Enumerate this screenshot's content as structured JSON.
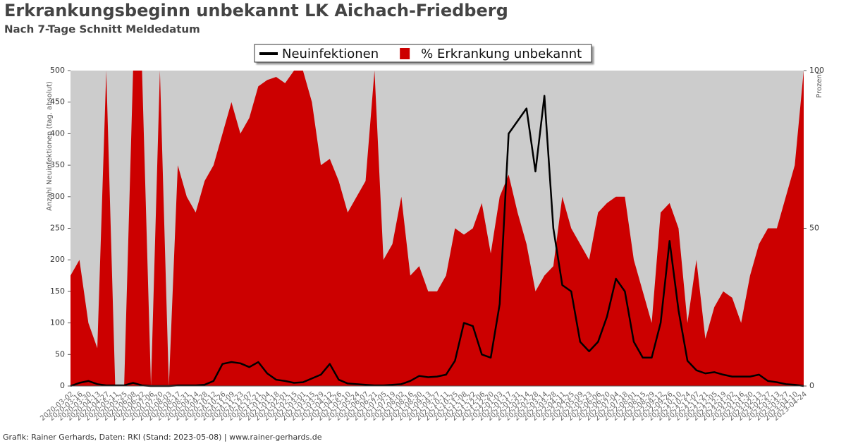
{
  "chart_data": {
    "type": "line",
    "title": "Erkrankungsbeginn unbekannt LK Aichach-Friedberg",
    "subtitle": "Nach 7-Tage Schnitt Meldedatum",
    "footer": "Grafik: Rainer Gerhards, Daten: RKI (Stand: 2023-05-08) | www.rainer-gerhards.de",
    "ylabel": "Anzahl Neuinfektionen (tag. absolut)",
    "y2label": "Prozent",
    "plot_background": "#cccccc",
    "categories": [
      "2020-03-02",
      "2020-03-16",
      "2020-03-30",
      "2020-04-13",
      "2020-04-27",
      "2020-05-11",
      "2020-05-25",
      "2020-06-08",
      "2020-06-22",
      "2020-07-06",
      "2020-07-20",
      "2020-08-03",
      "2020-08-17",
      "2020-08-31",
      "2020-09-14",
      "2020-09-28",
      "2020-10-12",
      "2020-10-26",
      "2020-11-09",
      "2020-11-23",
      "2020-12-07",
      "2020-12-21",
      "2021-01-04",
      "2021-01-18",
      "2021-02-01",
      "2021-02-15",
      "2021-03-01",
      "2021-03-15",
      "2021-03-29",
      "2021-04-12",
      "2021-04-26",
      "2021-05-10",
      "2021-05-24",
      "2021-06-07",
      "2021-06-21",
      "2021-07-05",
      "2021-07-19",
      "2021-08-02",
      "2021-08-16",
      "2021-08-30",
      "2021-09-13",
      "2021-09-27",
      "2021-10-11",
      "2021-10-25",
      "2021-11-08",
      "2021-11-22",
      "2021-12-06",
      "2021-12-20",
      "2022-01-03",
      "2022-01-17",
      "2022-01-31",
      "2022-02-14",
      "2022-02-28",
      "2022-03-14",
      "2022-03-28",
      "2022-04-11",
      "2022-04-25",
      "2022-05-09",
      "2022-05-23",
      "2022-06-06",
      "2022-06-20",
      "2022-07-04",
      "2022-07-18",
      "2022-08-01",
      "2022-08-15",
      "2022-08-29",
      "2022-09-12",
      "2022-09-26",
      "2022-10-10",
      "2022-10-24",
      "2022-11-07",
      "2022-11-21",
      "2022-12-05",
      "2022-12-19",
      "2023-01-02",
      "2023-01-16",
      "2023-01-30",
      "2023-02-13",
      "2023-02-27",
      "2023-03-13",
      "2023-03-27",
      "2023-04-10",
      "2023-04-24"
    ],
    "series": [
      {
        "name": "% Erkrankung unbekannt",
        "type": "area",
        "axis": "y2",
        "color": "#cc0000",
        "values": [
          35,
          40,
          20,
          12,
          100,
          0,
          0,
          100,
          100,
          0,
          100,
          0,
          70,
          60,
          55,
          65,
          70,
          80,
          90,
          80,
          85,
          95,
          97,
          98,
          96,
          100,
          100,
          90,
          70,
          72,
          65,
          55,
          60,
          65,
          100,
          40,
          45,
          60,
          35,
          38,
          30,
          30,
          35,
          50,
          48,
          50,
          58,
          42,
          60,
          67,
          55,
          45,
          30,
          35,
          38,
          60,
          50,
          45,
          40,
          55,
          58,
          60,
          60,
          40,
          30,
          20,
          55,
          58,
          50,
          20,
          40,
          15,
          25,
          30,
          28,
          20,
          35,
          45,
          50,
          50,
          60,
          70,
          100
        ]
      },
      {
        "name": "Neuinfektionen",
        "type": "line",
        "color": "#000000",
        "values": [
          0,
          5,
          8,
          3,
          1,
          1,
          1,
          5,
          1,
          0,
          0,
          0,
          1,
          1,
          1,
          2,
          8,
          35,
          38,
          36,
          30,
          38,
          20,
          10,
          8,
          5,
          6,
          12,
          18,
          35,
          10,
          4,
          3,
          2,
          1,
          1,
          2,
          3,
          8,
          16,
          14,
          15,
          18,
          40,
          100,
          95,
          50,
          45,
          130,
          400,
          420,
          440,
          340,
          460,
          250,
          160,
          150,
          70,
          55,
          70,
          110,
          170,
          150,
          70,
          45,
          45,
          100,
          230,
          120,
          40,
          25,
          20,
          22,
          18,
          15,
          15,
          15,
          18,
          8,
          6,
          3,
          2,
          0
        ]
      }
    ],
    "ylim": [
      0,
      500
    ],
    "yticks": [
      0,
      50,
      100,
      150,
      200,
      250,
      300,
      350,
      400,
      450,
      500
    ],
    "y2lim": [
      0,
      100
    ],
    "y2ticks": [
      0,
      50,
      100
    ]
  }
}
